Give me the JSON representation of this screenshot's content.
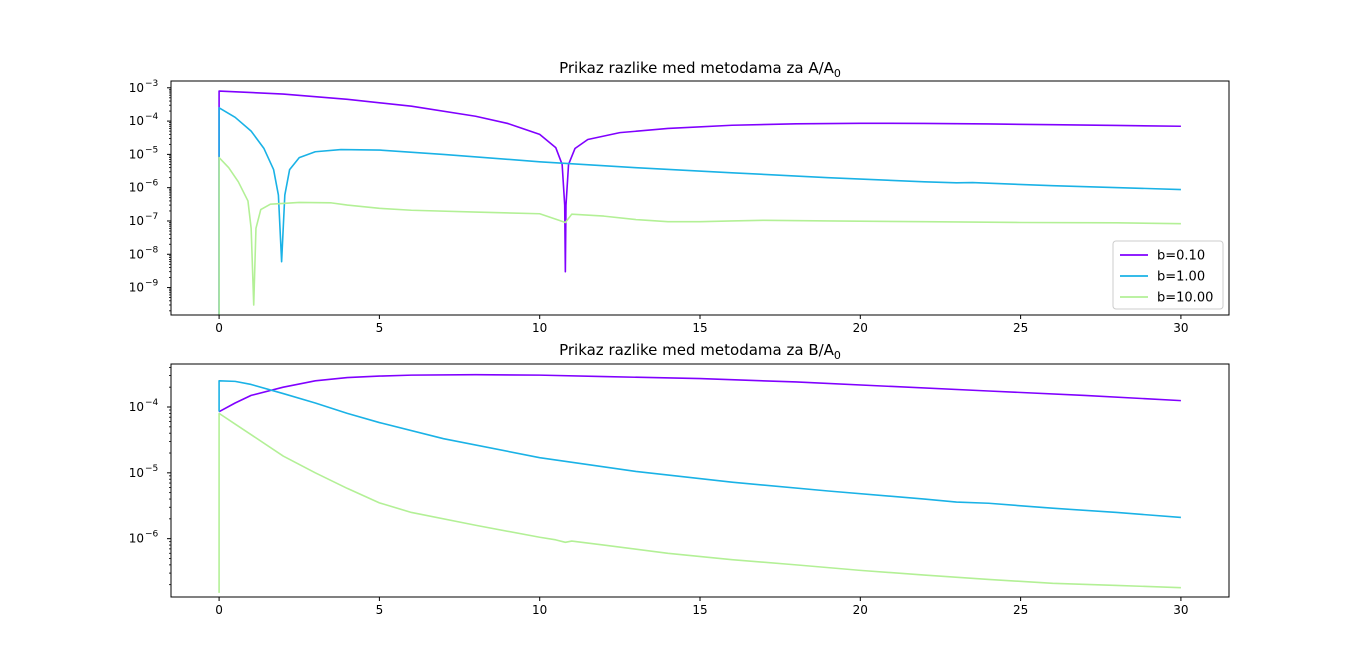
{
  "chart_data": [
    {
      "type": "line",
      "title": "Prikaz razlike med metodama za  A/A",
      "title_subscript": "0",
      "xlabel": "",
      "ylabel": "",
      "xlim": [
        -1.5,
        31.5
      ],
      "ylim": [
        1.5e-10,
        0.0016
      ],
      "yscale": "log",
      "x_ticks": [
        0,
        5,
        10,
        15,
        20,
        25,
        30
      ],
      "x_tick_labels": [
        "0",
        "5",
        "10",
        "15",
        "20",
        "25",
        "30"
      ],
      "y_ticks": [
        1e-09,
        1e-08,
        1e-07,
        1e-06,
        1e-05,
        0.0001,
        0.001
      ],
      "y_tick_labels": [
        {
          "base": "10",
          "exp": "−9"
        },
        {
          "base": "10",
          "exp": "−8"
        },
        {
          "base": "10",
          "exp": "−7"
        },
        {
          "base": "10",
          "exp": "−6"
        },
        {
          "base": "10",
          "exp": "−5"
        },
        {
          "base": "10",
          "exp": "−4"
        },
        {
          "base": "10",
          "exp": "−3"
        }
      ],
      "grid": false,
      "legend": "lower-right",
      "series": [
        {
          "name": "b=0.10",
          "color": "#8000ff",
          "points": [
            [
              0,
              0
            ],
            [
              0,
              0.0008
            ],
            [
              2,
              0.00065
            ],
            [
              4,
              0.00045
            ],
            [
              6,
              0.00028
            ],
            [
              8,
              0.00014
            ],
            [
              9,
              8.5e-05
            ],
            [
              10,
              4e-05
            ],
            [
              10.5,
              1.6e-05
            ],
            [
              10.7,
              5e-06
            ],
            [
              10.78,
              3e-07
            ],
            [
              10.8,
              3e-09
            ],
            [
              10.82,
              3e-07
            ],
            [
              10.9,
              5e-06
            ],
            [
              11.1,
              1.5e-05
            ],
            [
              11.5,
              2.8e-05
            ],
            [
              12.5,
              4.5e-05
            ],
            [
              14,
              6e-05
            ],
            [
              16,
              7.5e-05
            ],
            [
              18,
              8.3e-05
            ],
            [
              20,
              8.6e-05
            ],
            [
              22,
              8.5e-05
            ],
            [
              24,
              8.2e-05
            ],
            [
              26,
              7.8e-05
            ],
            [
              28,
              7.4e-05
            ],
            [
              30,
              7e-05
            ]
          ]
        },
        {
          "name": "b=1.00",
          "color": "#1ab2e6",
          "points": [
            [
              0,
              0
            ],
            [
              0,
              0.00025
            ],
            [
              0.5,
              0.00013
            ],
            [
              1,
              5e-05
            ],
            [
              1.4,
              1.5e-05
            ],
            [
              1.7,
              3.5e-06
            ],
            [
              1.85,
              6e-07
            ],
            [
              1.95,
              6e-09
            ],
            [
              2.05,
              6e-07
            ],
            [
              2.2,
              3.5e-06
            ],
            [
              2.5,
              8e-06
            ],
            [
              3,
              1.2e-05
            ],
            [
              3.8,
              1.4e-05
            ],
            [
              5,
              1.35e-05
            ],
            [
              7,
              1e-05
            ],
            [
              10,
              6e-06
            ],
            [
              13,
              4e-06
            ],
            [
              16,
              2.8e-06
            ],
            [
              19,
              2e-06
            ],
            [
              22,
              1.5e-06
            ],
            [
              23,
              1.4e-06
            ],
            [
              23.5,
              1.42e-06
            ],
            [
              26,
              1.15e-06
            ],
            [
              30,
              8.8e-07
            ]
          ]
        },
        {
          "name": "b=10.00",
          "color": "#b3f096",
          "points": [
            [
              0,
              0
            ],
            [
              0,
              8e-06
            ],
            [
              0.3,
              4e-06
            ],
            [
              0.6,
              1.5e-06
            ],
            [
              0.9,
              4e-07
            ],
            [
              1.0,
              6e-08
            ],
            [
              1.08,
              3e-10
            ],
            [
              1.15,
              6e-08
            ],
            [
              1.3,
              2.2e-07
            ],
            [
              1.6,
              3.2e-07
            ],
            [
              2.5,
              3.6e-07
            ],
            [
              3.5,
              3.5e-07
            ],
            [
              4,
              3e-07
            ],
            [
              5,
              2.4e-07
            ],
            [
              6,
              2.1e-07
            ],
            [
              8,
              1.85e-07
            ],
            [
              10,
              1.65e-07
            ],
            [
              10.6,
              1.05e-07
            ],
            [
              10.8,
              9e-08
            ],
            [
              11,
              1.6e-07
            ],
            [
              12,
              1.4e-07
            ],
            [
              13,
              1.1e-07
            ],
            [
              14,
              9.5e-08
            ],
            [
              15,
              9.5e-08
            ],
            [
              16,
              1e-07
            ],
            [
              17,
              1.05e-07
            ],
            [
              19,
              1e-07
            ],
            [
              22,
              9.5e-08
            ],
            [
              25,
              9e-08
            ],
            [
              28,
              8.8e-08
            ],
            [
              30,
              8.3e-08
            ]
          ]
        }
      ]
    },
    {
      "type": "line",
      "title": "Prikaz razlike med metodama za  B/A",
      "title_subscript": "0",
      "xlabel": "",
      "ylabel": "",
      "xlim": [
        -1.5,
        31.5
      ],
      "ylim": [
        1.3e-07,
        0.00045
      ],
      "yscale": "log",
      "x_ticks": [
        0,
        5,
        10,
        15,
        20,
        25,
        30
      ],
      "x_tick_labels": [
        "0",
        "5",
        "10",
        "15",
        "20",
        "25",
        "30"
      ],
      "y_ticks": [
        1e-06,
        1e-05,
        0.0001
      ],
      "y_tick_labels": [
        {
          "base": "10",
          "exp": "−6"
        },
        {
          "base": "10",
          "exp": "−5"
        },
        {
          "base": "10",
          "exp": "−4"
        }
      ],
      "grid": false,
      "series": [
        {
          "name": "b=0.10",
          "color": "#8000ff",
          "points": [
            [
              0,
              8.5e-05
            ],
            [
              0.5,
              0.000115
            ],
            [
              1,
              0.00015
            ],
            [
              2,
              0.0002
            ],
            [
              3,
              0.00025
            ],
            [
              4,
              0.00028
            ],
            [
              5,
              0.000295
            ],
            [
              6,
              0.000305
            ],
            [
              8,
              0.00031
            ],
            [
              10,
              0.000305
            ],
            [
              12,
              0.00029
            ],
            [
              15,
              0.00027
            ],
            [
              18,
              0.00024
            ],
            [
              21,
              0.000205
            ],
            [
              24,
              0.000175
            ],
            [
              27,
              0.00015
            ],
            [
              30,
              0.000125
            ]
          ]
        },
        {
          "name": "b=1.00",
          "color": "#1ab2e6",
          "points": [
            [
              0,
              8.5e-05
            ],
            [
              0,
              0.00025
            ],
            [
              0.5,
              0.000245
            ],
            [
              1,
              0.00022
            ],
            [
              2,
              0.00016
            ],
            [
              3,
              0.000115
            ],
            [
              4,
              8e-05
            ],
            [
              5,
              5.8e-05
            ],
            [
              7,
              3.3e-05
            ],
            [
              10,
              1.7e-05
            ],
            [
              13,
              1.05e-05
            ],
            [
              16,
              7.2e-06
            ],
            [
              19,
              5.3e-06
            ],
            [
              22,
              4e-06
            ],
            [
              23,
              3.6e-06
            ],
            [
              24,
              3.45e-06
            ],
            [
              26,
              2.9e-06
            ],
            [
              28,
              2.5e-06
            ],
            [
              30,
              2.1e-06
            ]
          ]
        },
        {
          "name": "b=10.00",
          "color": "#b3f096",
          "points": [
            [
              0,
              1.5e-07
            ],
            [
              0,
              8e-05
            ],
            [
              0.5,
              5.5e-05
            ],
            [
              1,
              3.8e-05
            ],
            [
              2,
              1.8e-05
            ],
            [
              3,
              1e-05
            ],
            [
              4,
              5.8e-06
            ],
            [
              5,
              3.5e-06
            ],
            [
              6,
              2.5e-06
            ],
            [
              8,
              1.6e-06
            ],
            [
              10,
              1.05e-06
            ],
            [
              10.5,
              9.6e-07
            ],
            [
              10.8,
              8.8e-07
            ],
            [
              11,
              9.2e-07
            ],
            [
              12,
              8e-07
            ],
            [
              14,
              6e-07
            ],
            [
              16,
              4.8e-07
            ],
            [
              18,
              4e-07
            ],
            [
              20,
              3.3e-07
            ],
            [
              22,
              2.8e-07
            ],
            [
              24,
              2.4e-07
            ],
            [
              26,
              2.1e-07
            ],
            [
              28,
              1.95e-07
            ],
            [
              30,
              1.8e-07
            ]
          ]
        }
      ]
    }
  ]
}
